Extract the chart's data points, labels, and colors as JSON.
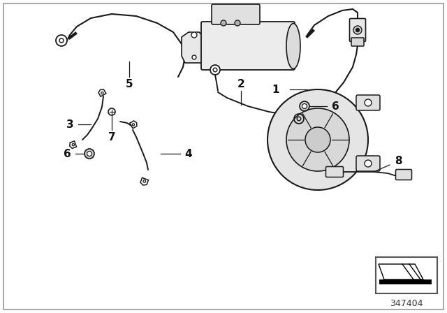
{
  "background_color": "#ffffff",
  "line_color": "#1a1a1a",
  "label_color": "#111111",
  "diagram_number": "347404",
  "label_fontsize": 11,
  "diagram_num_fontsize": 9
}
